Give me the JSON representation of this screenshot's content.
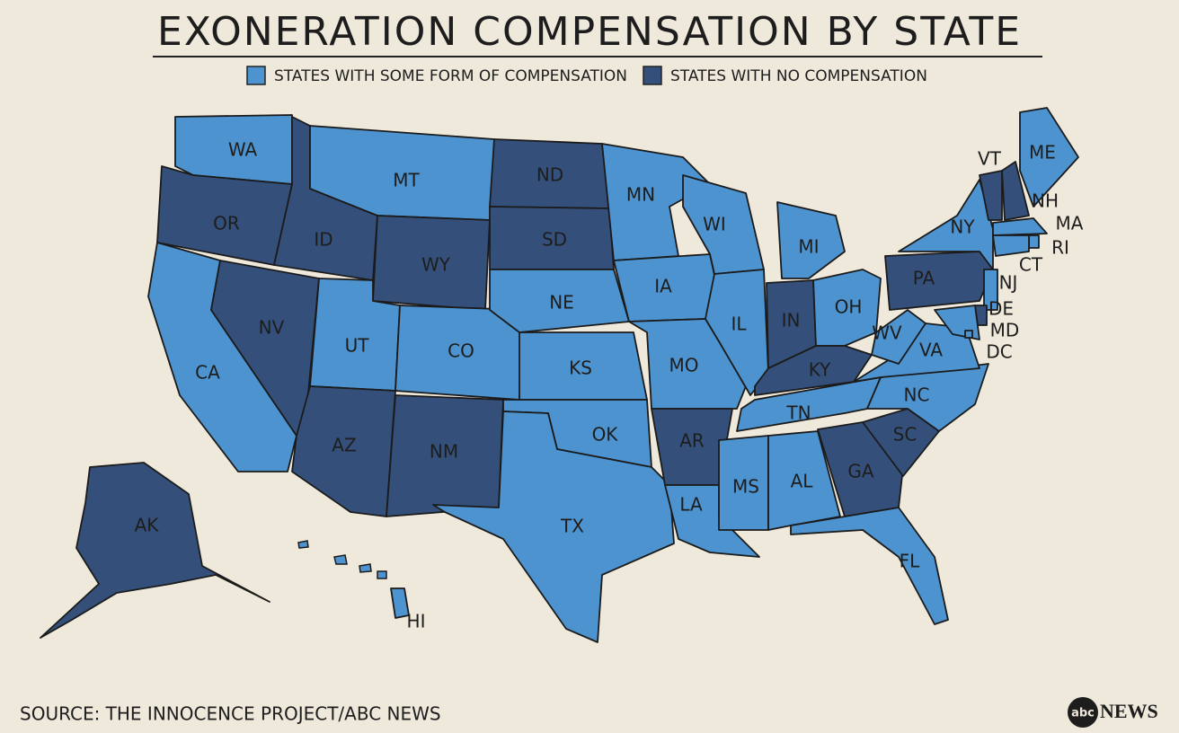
{
  "title": "EXONERATION COMPENSATION BY STATE",
  "legend": [
    {
      "label": "STATES WITH SOME FORM OF COMPENSATION",
      "color": "#4d93cf"
    },
    {
      "label": "STATES WITH NO COMPENSATION",
      "color": "#34507a"
    }
  ],
  "states": [
    {
      "abbr": "WA",
      "category": 0
    },
    {
      "abbr": "OR",
      "category": 1
    },
    {
      "abbr": "CA",
      "category": 0
    },
    {
      "abbr": "NV",
      "category": 1
    },
    {
      "abbr": "ID",
      "category": 1
    },
    {
      "abbr": "MT",
      "category": 0
    },
    {
      "abbr": "WY",
      "category": 1
    },
    {
      "abbr": "UT",
      "category": 0
    },
    {
      "abbr": "CO",
      "category": 0
    },
    {
      "abbr": "AZ",
      "category": 1
    },
    {
      "abbr": "NM",
      "category": 1
    },
    {
      "abbr": "ND",
      "category": 1
    },
    {
      "abbr": "SD",
      "category": 1
    },
    {
      "abbr": "NE",
      "category": 0
    },
    {
      "abbr": "KS",
      "category": 0
    },
    {
      "abbr": "OK",
      "category": 0
    },
    {
      "abbr": "TX",
      "category": 0
    },
    {
      "abbr": "MN",
      "category": 0
    },
    {
      "abbr": "IA",
      "category": 0
    },
    {
      "abbr": "MO",
      "category": 0
    },
    {
      "abbr": "AR",
      "category": 1
    },
    {
      "abbr": "LA",
      "category": 0
    },
    {
      "abbr": "WI",
      "category": 0
    },
    {
      "abbr": "IL",
      "category": 0
    },
    {
      "abbr": "MI",
      "category": 0
    },
    {
      "abbr": "IN",
      "category": 1
    },
    {
      "abbr": "OH",
      "category": 0
    },
    {
      "abbr": "KY",
      "category": 1
    },
    {
      "abbr": "TN",
      "category": 0
    },
    {
      "abbr": "MS",
      "category": 0
    },
    {
      "abbr": "AL",
      "category": 0
    },
    {
      "abbr": "GA",
      "category": 1
    },
    {
      "abbr": "FL",
      "category": 0
    },
    {
      "abbr": "SC",
      "category": 1
    },
    {
      "abbr": "NC",
      "category": 0
    },
    {
      "abbr": "VA",
      "category": 0
    },
    {
      "abbr": "WV",
      "category": 0
    },
    {
      "abbr": "PA",
      "category": 1
    },
    {
      "abbr": "NY",
      "category": 0
    },
    {
      "abbr": "VT",
      "category": 1
    },
    {
      "abbr": "NH",
      "category": 1
    },
    {
      "abbr": "ME",
      "category": 0
    },
    {
      "abbr": "MA",
      "category": 0
    },
    {
      "abbr": "RI",
      "category": 0
    },
    {
      "abbr": "CT",
      "category": 0
    },
    {
      "abbr": "NJ",
      "category": 0
    },
    {
      "abbr": "DE",
      "category": 1
    },
    {
      "abbr": "MD",
      "category": 0
    },
    {
      "abbr": "DC",
      "category": 0
    },
    {
      "abbr": "AK",
      "category": 1
    },
    {
      "abbr": "HI",
      "category": 0
    }
  ],
  "source": "SOURCE: THE INNOCENCE PROJECT/ABC NEWS",
  "logo": {
    "mark": "abc",
    "text": "NEWS"
  }
}
